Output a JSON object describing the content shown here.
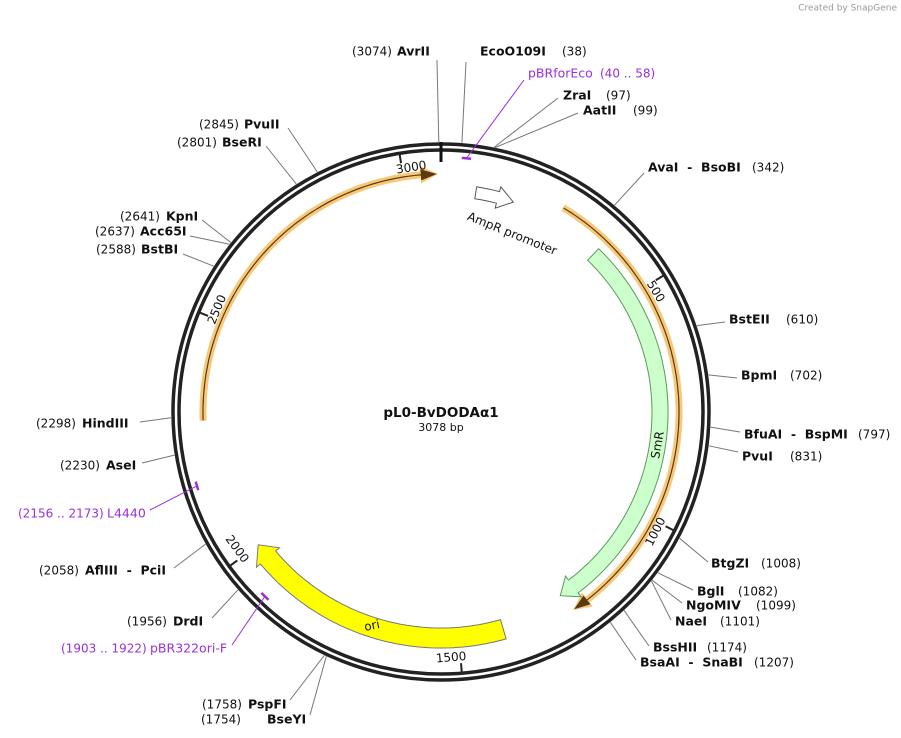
{
  "credit": "Created by SnapGene",
  "plasmid": {
    "name": "pL0-BvDODAα1",
    "size": {
      "value": 3078,
      "label": "3078 bp"
    }
  },
  "ticks": [
    500,
    1000,
    1500,
    2000,
    2500,
    3000
  ],
  "features": [
    {
      "label": "AmpR promoter"
    },
    {
      "label": "SmR"
    },
    {
      "label": "ori"
    }
  ],
  "sites": [
    {
      "name": "AvrII",
      "position": {
        "value": 3074,
        "label": "(3074)"
      }
    },
    {
      "name": "EcoO109I",
      "position": {
        "value": 38,
        "label": "(38)"
      }
    },
    {
      "name": "ZraI",
      "position": {
        "value": 97,
        "label": "(97)"
      }
    },
    {
      "name": "AatII",
      "position": {
        "value": 99,
        "label": "(99)"
      }
    },
    {
      "name": "AvaI  -  BsoBI",
      "position": {
        "value": 342,
        "label": "(342)"
      }
    },
    {
      "name": "BstEII",
      "position": {
        "value": 610,
        "label": "(610)"
      }
    },
    {
      "name": "BpmI",
      "position": {
        "value": 702,
        "label": "(702)"
      }
    },
    {
      "name": "BfuAI  -  BspMI",
      "position": {
        "value": 797,
        "label": "(797)"
      }
    },
    {
      "name": "PvuI",
      "position": {
        "value": 831,
        "label": "(831)"
      }
    },
    {
      "name": "BtgZI",
      "position": {
        "value": 1008,
        "label": "(1008)"
      }
    },
    {
      "name": "BglI",
      "position": {
        "value": 1082,
        "label": "(1082)"
      }
    },
    {
      "name": "NgoMIV",
      "position": {
        "value": 1099,
        "label": "(1099)"
      }
    },
    {
      "name": "NaeI",
      "position": {
        "value": 1101,
        "label": "(1101)"
      }
    },
    {
      "name": "BssHII",
      "position": {
        "value": 1174,
        "label": "(1174)"
      }
    },
    {
      "name": "BsaAI  -  SnaBI",
      "position": {
        "value": 1207,
        "label": "(1207)"
      }
    },
    {
      "name": "PvuII",
      "position": {
        "value": 2845,
        "label": "(2845)"
      }
    },
    {
      "name": "BseRI",
      "position": {
        "value": 2801,
        "label": "(2801)"
      }
    },
    {
      "name": "KpnI",
      "position": {
        "value": 2641,
        "label": "(2641)"
      }
    },
    {
      "name": "Acc65I",
      "position": {
        "value": 2637,
        "label": "(2637)"
      }
    },
    {
      "name": "BstBI",
      "position": {
        "value": 2588,
        "label": "(2588)"
      }
    },
    {
      "name": "HindIII",
      "position": {
        "value": 2298,
        "label": "(2298)"
      }
    },
    {
      "name": "AseI",
      "position": {
        "value": 2230,
        "label": "(2230)"
      }
    },
    {
      "name": "AflIII  -  PciI",
      "position": {
        "value": 2058,
        "label": "(2058)"
      }
    },
    {
      "name": "DrdI",
      "position": {
        "value": 1956,
        "label": "(1956)"
      }
    },
    {
      "name": "PspFI",
      "position": {
        "value": 1758,
        "label": "(1758)"
      }
    },
    {
      "name": "BseYI",
      "position": {
        "value": 1754,
        "label": "(1754)"
      }
    }
  ],
  "primers": [
    {
      "name": "pBRforEco",
      "range": {
        "start": 40,
        "end": 58,
        "label": "(40 .. 58)"
      }
    },
    {
      "name": "L4440",
      "range": {
        "start": 2156,
        "end": 2173,
        "label": "(2156 .. 2173)"
      }
    },
    {
      "name": "pBR322ori-F",
      "range": {
        "start": 1903,
        "end": 1922,
        "label": "(1903 .. 1922)"
      }
    }
  ]
}
